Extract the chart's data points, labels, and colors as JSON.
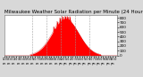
{
  "title": "Milwaukee Weather Solar Radiation per Minute (24 Hours)",
  "bg_color": "#d8d8d8",
  "plot_bg_color": "#ffffff",
  "fill_color": "#ff0000",
  "line_color": "#bb0000",
  "grid_color": "#999999",
  "ylim": [
    0,
    850
  ],
  "yticks": [
    0,
    100,
    200,
    300,
    400,
    500,
    600,
    700,
    800
  ],
  "num_points": 1440,
  "peak_hour": 13.0,
  "peak_value": 780,
  "title_fontsize": 4.0,
  "tick_fontsize": 3.0,
  "xtick_fontsize": 2.0
}
